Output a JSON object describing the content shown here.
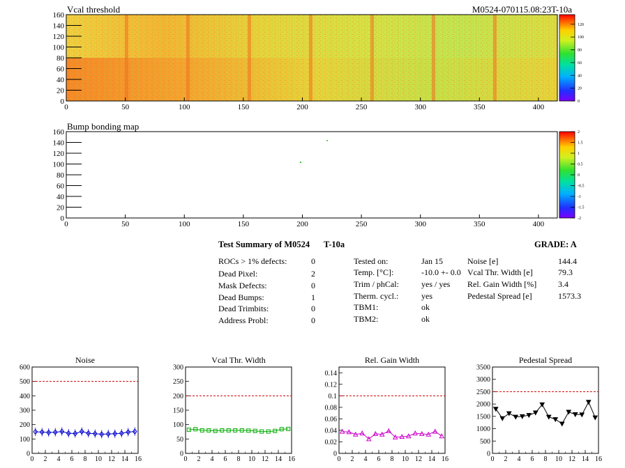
{
  "heatmaps": {
    "top": {
      "title": "Vcal threshold",
      "id_label": "M0524-070115.08:23T-10a",
      "x_ticks": [
        "0",
        "50",
        "100",
        "150",
        "200",
        "250",
        "300",
        "350",
        "400"
      ],
      "y_ticks": [
        "0",
        "20",
        "40",
        "60",
        "80",
        "100",
        "120",
        "140",
        "160"
      ],
      "colorbar_ticks": [
        "0",
        "20",
        "40",
        "60",
        "80",
        "100",
        "120"
      ]
    },
    "bottom": {
      "title": "Bump bonding map",
      "x_ticks": [
        "0",
        "50",
        "100",
        "150",
        "200",
        "250",
        "300",
        "350",
        "400"
      ],
      "y_ticks": [
        "0",
        "20",
        "40",
        "60",
        "80",
        "100",
        "120",
        "140",
        "160"
      ],
      "colorbar_ticks": [
        "-2",
        "-1.5",
        "-1",
        "-0.5",
        "0",
        "0.5",
        "1",
        "1.5",
        "2"
      ]
    }
  },
  "summary": {
    "title": "Test Summary of M0524",
    "temp_label": "T-10a",
    "grade": "GRADE:  A",
    "defects": [
      {
        "label": "ROCs > 1% defects:",
        "value": "0"
      },
      {
        "label": "Dead Pixel:",
        "value": "2"
      },
      {
        "label": "Mask Defects:",
        "value": "0"
      },
      {
        "label": "Dead Bumps:",
        "value": "1"
      },
      {
        "label": "Dead Trimbits:",
        "value": "0"
      },
      {
        "label": "Address Probl:",
        "value": "0"
      }
    ],
    "conditions": [
      {
        "label": "Tested on:",
        "value": "Jan 15"
      },
      {
        "label": "Temp. [°C]:",
        "value": "-10.0 +- 0.0"
      },
      {
        "label": "Trim / phCal:",
        "value": "yes / yes"
      },
      {
        "label": "Therm. cycl.:",
        "value": "yes"
      },
      {
        "label": "TBM1:",
        "value": "ok"
      },
      {
        "label": "TBM2:",
        "value": "ok"
      }
    ],
    "metrics": [
      {
        "label": "Noise [e]",
        "value": "144.4"
      },
      {
        "label": "Vcal Thr. Width [e]",
        "value": "79.3"
      },
      {
        "label": "Rel. Gain Width [%]",
        "value": "3.4"
      },
      {
        "label": "Pedestal Spread [e]",
        "value": "1573.3"
      }
    ]
  },
  "chart_data": [
    {
      "type": "line",
      "title": "Noise",
      "x": [
        0,
        1,
        2,
        3,
        4,
        5,
        6,
        7,
        8,
        9,
        10,
        11,
        12,
        13,
        14,
        15
      ],
      "values": [
        150,
        148,
        145,
        147,
        152,
        140,
        138,
        152,
        140,
        137,
        133,
        135,
        137,
        140,
        148,
        152
      ],
      "xlim": [
        0,
        16
      ],
      "ylim": [
        0,
        600
      ],
      "x_ticks": [
        "0",
        "2",
        "4",
        "6",
        "8",
        "10",
        "12",
        "14",
        "16"
      ],
      "y_ticks": [
        "0",
        "100",
        "200",
        "300",
        "400",
        "500",
        "600"
      ],
      "threshold": 500,
      "color": "#0000cc",
      "marker": "diamond"
    },
    {
      "type": "line",
      "title": "Vcal Thr. Width",
      "x": [
        0,
        1,
        2,
        3,
        4,
        5,
        6,
        7,
        8,
        9,
        10,
        11,
        12,
        13,
        14,
        15
      ],
      "values": [
        82,
        84,
        80,
        80,
        78,
        80,
        80,
        80,
        80,
        79,
        78,
        76,
        76,
        78,
        84,
        85
      ],
      "xlim": [
        0,
        16
      ],
      "ylim": [
        0,
        300
      ],
      "x_ticks": [
        "0",
        "2",
        "4",
        "6",
        "8",
        "10",
        "12",
        "14",
        "16"
      ],
      "y_ticks": [
        "0",
        "50",
        "100",
        "150",
        "200",
        "250",
        "300"
      ],
      "threshold": 200,
      "color": "#00aa00",
      "marker": "square"
    },
    {
      "type": "line",
      "title": "Rel. Gain Width",
      "x": [
        0,
        1,
        2,
        3,
        4,
        5,
        6,
        7,
        8,
        9,
        10,
        11,
        12,
        13,
        14,
        15
      ],
      "values": [
        0.038,
        0.037,
        0.033,
        0.035,
        0.025,
        0.034,
        0.033,
        0.039,
        0.028,
        0.029,
        0.03,
        0.035,
        0.034,
        0.033,
        0.038,
        0.03
      ],
      "xlim": [
        0,
        16
      ],
      "ylim": [
        0,
        0.15
      ],
      "x_ticks": [
        "0",
        "2",
        "4",
        "6",
        "8",
        "10",
        "12",
        "14",
        "16"
      ],
      "y_ticks": [
        "0",
        "0.02",
        "0.04",
        "0.06",
        "0.08",
        "0.1",
        "0.12",
        "0.14"
      ],
      "threshold": 0.1,
      "color": "#cc00cc",
      "marker": "triangle"
    },
    {
      "type": "line",
      "title": "Pedestal Spread",
      "x": [
        0,
        1,
        2,
        3,
        4,
        5,
        6,
        7,
        8,
        9,
        10,
        11,
        12,
        13,
        14,
        15
      ],
      "values": [
        1800,
        1420,
        1620,
        1480,
        1500,
        1550,
        1650,
        1980,
        1480,
        1380,
        1200,
        1680,
        1580,
        1570,
        2080,
        1450
      ],
      "xlim": [
        0,
        16
      ],
      "ylim": [
        0,
        3500
      ],
      "x_ticks": [
        "0",
        "2",
        "4",
        "6",
        "8",
        "10",
        "12",
        "14",
        "16"
      ],
      "y_ticks": [
        "0",
        "500",
        "1000",
        "1500",
        "2000",
        "2500",
        "3000",
        "3500"
      ],
      "threshold": 2500,
      "color": "#000000",
      "marker": "triangle-down"
    }
  ]
}
